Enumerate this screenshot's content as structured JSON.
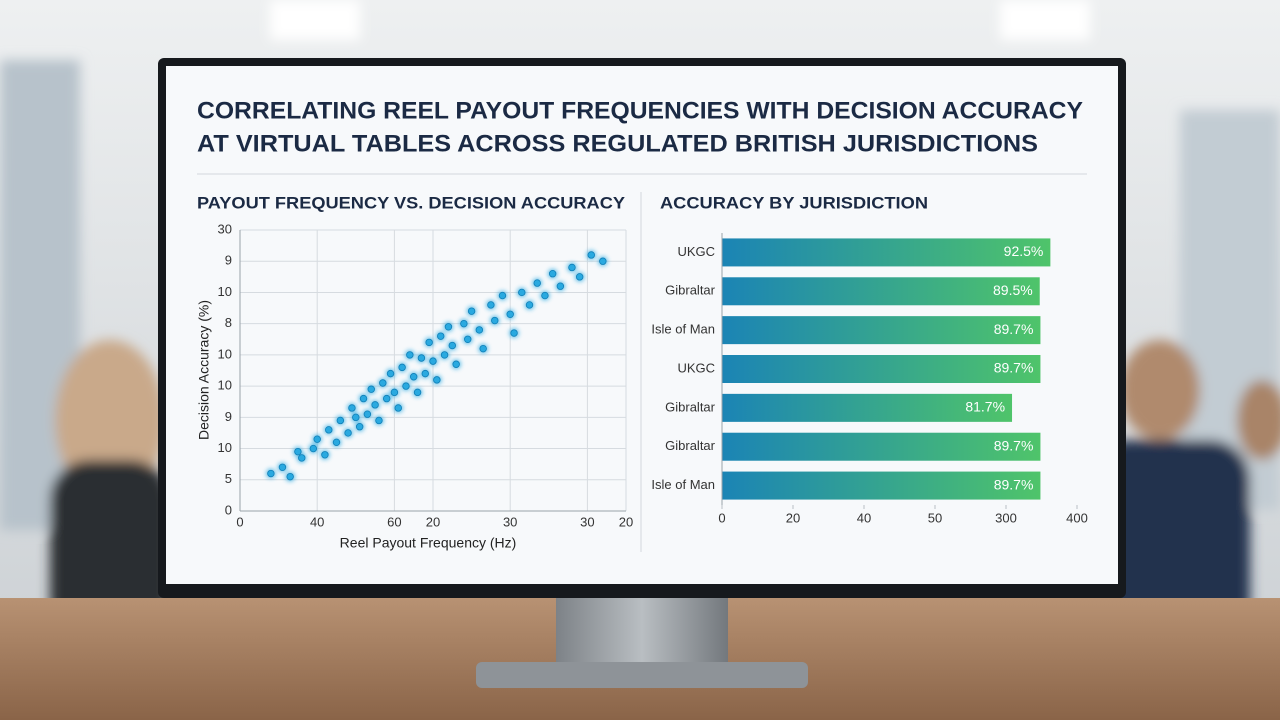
{
  "page_title": [
    "CORRELATING REEL PAYOUT FREQUENCIES WITH DECISION ACCURACY",
    "AT VIRTUAL TABLES ACROSS REGULATED BRITISH JURISDICTIONS"
  ],
  "chart_data": [
    {
      "type": "scatter",
      "title": "PAYOUT FREQUENCY VS. DECISION ACCURACY",
      "x_label": "Reel Payout Frequency (Hz)",
      "y_label": "Decision Accuracy (%)",
      "color": "#29a9e0",
      "grid": true,
      "xlim": [
        0,
        10
      ],
      "ylim": [
        0,
        9
      ],
      "xticks": [
        0,
        {
          "value": 2,
          "label": "40"
        },
        {
          "value": 4,
          "label": "60"
        },
        {
          "value": 5,
          "label": "20"
        },
        {
          "value": 7,
          "label": "30"
        },
        {
          "value": 9,
          "label": "30"
        },
        {
          "value": 10,
          "label": "20"
        }
      ],
      "yticks": [
        0,
        {
          "value": 1,
          "label": "5"
        },
        {
          "value": 2,
          "label": "10"
        },
        {
          "value": 3,
          "label": "9"
        },
        {
          "value": 4,
          "label": "10"
        },
        {
          "value": 5,
          "label": "10"
        },
        {
          "value": 6,
          "label": "8"
        },
        {
          "value": 7,
          "label": "10"
        },
        {
          "value": 8,
          "label": "9"
        },
        {
          "value": 9,
          "label": "30"
        }
      ],
      "x": [
        0.8,
        1.1,
        1.3,
        1.5,
        1.6,
        1.9,
        2.0,
        2.2,
        2.3,
        2.5,
        2.6,
        2.8,
        2.9,
        3.0,
        3.1,
        3.2,
        3.3,
        3.4,
        3.5,
        3.6,
        3.7,
        3.8,
        3.9,
        4.0,
        4.1,
        4.2,
        4.3,
        4.4,
        4.5,
        4.6,
        4.7,
        4.8,
        4.9,
        5.0,
        5.1,
        5.2,
        5.3,
        5.4,
        5.5,
        5.6,
        5.8,
        5.9,
        6.0,
        6.2,
        6.3,
        6.5,
        6.6,
        6.8,
        7.0,
        7.1,
        7.3,
        7.5,
        7.7,
        7.9,
        8.1,
        8.3,
        8.6,
        8.8,
        9.1,
        9.4
      ],
      "values": [
        1.2,
        1.4,
        1.1,
        1.9,
        1.7,
        2.0,
        2.3,
        1.8,
        2.6,
        2.2,
        2.9,
        2.5,
        3.3,
        3.0,
        2.7,
        3.6,
        3.1,
        3.9,
        3.4,
        2.9,
        4.1,
        3.6,
        4.4,
        3.8,
        3.3,
        4.6,
        4.0,
        5.0,
        4.3,
        3.8,
        4.9,
        4.4,
        5.4,
        4.8,
        4.2,
        5.6,
        5.0,
        5.9,
        5.3,
        4.7,
        6.0,
        5.5,
        6.4,
        5.8,
        5.2,
        6.6,
        6.1,
        6.9,
        6.3,
        5.7,
        7.0,
        6.6,
        7.3,
        6.9,
        7.6,
        7.2,
        7.8,
        7.5,
        8.2,
        8.0
      ]
    },
    {
      "type": "barh",
      "title": "ACCURACY BY JURISDICTION",
      "gradient": [
        "#1b84b5",
        "#4fc46a"
      ],
      "categories": [
        "UKGC",
        "Gibraltar",
        "Isle of Man",
        "UKGC",
        "Gibraltar",
        "Gibraltar",
        "Isle of Man"
      ],
      "values": [
        92.5,
        89.5,
        89.7,
        89.7,
        81.7,
        89.7,
        89.7
      ],
      "value_labels": [
        "92.5%",
        "89.5%",
        "89.7%",
        "89.7%",
        "81.7%",
        "89.7%",
        "89.7%"
      ],
      "xlim": [
        0,
        100
      ],
      "xticks": [
        0,
        20,
        40,
        {
          "value": 60,
          "label": "50"
        },
        {
          "value": 80,
          "label": "300"
        },
        {
          "value": 100,
          "label": "400"
        }
      ]
    }
  ]
}
